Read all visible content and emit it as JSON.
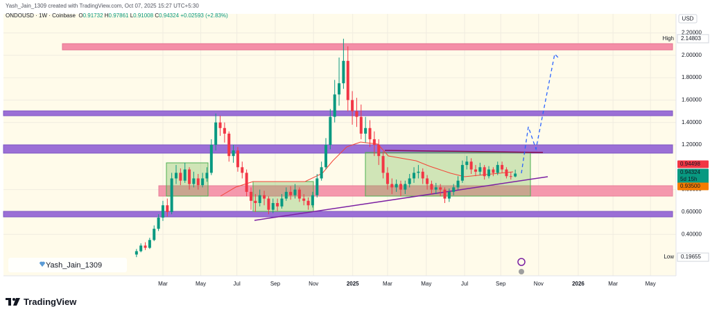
{
  "chart_data": {
    "type": "candlestick",
    "credit": "Yash_Jain_1309 created with TradingView.com, Oct 07, 2025 15:27 UTC+5:30",
    "symbol": "ONDOUSD · 1W · Coinbase",
    "ohlc_prefixes": [
      "O",
      "H",
      "L",
      "C"
    ],
    "change": "+0.02593 (+2.83%)",
    "currency": "USD",
    "watermark": "Yash_Jain_1309",
    "branding": "TradingView",
    "high_label": "High",
    "low_label": "Low",
    "countdown": "5d 15h",
    "price_tags": [
      {
        "value": 0.94498,
        "color": "#f23645"
      },
      {
        "value": 0.935,
        "label": "0.93500",
        "color": "#f57c00"
      }
    ],
    "up_color": "#089981",
    "down_color": "#f23645",
    "open": [
      0.22,
      0.25,
      0.3,
      0.28,
      0.35,
      0.45,
      0.55,
      0.66,
      0.6,
      0.9,
      0.95,
      0.88,
      0.98,
      0.85,
      0.9,
      0.84,
      0.9,
      0.95,
      1.2,
      1.4,
      1.35,
      1.3,
      1.1,
      1.15,
      1.0,
      0.95,
      0.78,
      0.7,
      0.68,
      0.75,
      0.72,
      0.62,
      0.68,
      0.65,
      0.72,
      0.78,
      0.75,
      0.8,
      0.72,
      0.7,
      0.66,
      0.75,
      0.9,
      1.0,
      1.2,
      1.45,
      1.65,
      1.75,
      1.95,
      1.6,
      1.5,
      1.45,
      1.3,
      1.35,
      1.25,
      1.2,
      1.1,
      0.95,
      0.85,
      0.82,
      0.85,
      0.8,
      0.85,
      0.9,
      0.95,
      0.96,
      0.9,
      0.85,
      0.8,
      0.82,
      0.8,
      0.72,
      0.78,
      0.82,
      0.88,
      1.02,
      1.05,
      0.98,
      0.96,
      1.0,
      0.92,
      0.98,
      0.95,
      1.02,
      0.98,
      0.92,
      0.91732
    ],
    "high": [
      0.27,
      0.32,
      0.33,
      0.37,
      0.48,
      0.58,
      0.7,
      0.72,
      0.95,
      1.02,
      0.99,
      1.04,
      1.0,
      0.96,
      0.94,
      0.95,
      1.0,
      1.25,
      1.48,
      1.46,
      1.4,
      1.32,
      1.2,
      1.18,
      1.05,
      0.98,
      0.82,
      0.76,
      0.8,
      0.79,
      0.74,
      0.72,
      0.72,
      0.76,
      0.82,
      0.83,
      0.85,
      0.82,
      0.76,
      0.73,
      0.78,
      0.94,
      1.05,
      1.26,
      1.52,
      1.78,
      1.98,
      2.14803,
      2.08,
      1.68,
      1.62,
      1.56,
      1.45,
      1.42,
      1.32,
      1.25,
      1.14,
      1.0,
      0.9,
      0.89,
      0.88,
      0.88,
      0.94,
      1.0,
      1.02,
      0.99,
      0.93,
      0.88,
      0.86,
      0.85,
      0.82,
      0.81,
      0.85,
      0.92,
      1.06,
      1.1,
      1.08,
      1.02,
      1.04,
      1.02,
      1.01,
      1.0,
      1.05,
      1.05,
      1.0,
      0.96,
      0.97861
    ],
    "low": [
      0.19655,
      0.24,
      0.26,
      0.27,
      0.34,
      0.43,
      0.52,
      0.56,
      0.58,
      0.85,
      0.84,
      0.86,
      0.8,
      0.82,
      0.8,
      0.82,
      0.87,
      0.93,
      1.15,
      1.28,
      1.22,
      1.05,
      1.04,
      0.96,
      0.9,
      0.74,
      0.62,
      0.6,
      0.65,
      0.66,
      0.58,
      0.59,
      0.61,
      0.63,
      0.7,
      0.71,
      0.72,
      0.69,
      0.66,
      0.62,
      0.64,
      0.73,
      0.88,
      0.98,
      1.16,
      1.4,
      1.55,
      1.7,
      1.5,
      1.38,
      1.36,
      1.25,
      1.22,
      1.18,
      1.1,
      1.02,
      0.9,
      0.8,
      0.76,
      0.78,
      0.74,
      0.76,
      0.82,
      0.86,
      0.9,
      0.85,
      0.8,
      0.76,
      0.76,
      0.74,
      0.68,
      0.69,
      0.75,
      0.8,
      0.86,
      0.98,
      0.94,
      0.92,
      0.93,
      0.89,
      0.9,
      0.92,
      0.93,
      0.95,
      0.9,
      0.89,
      0.91008
    ],
    "close": [
      0.25,
      0.3,
      0.28,
      0.35,
      0.45,
      0.55,
      0.66,
      0.6,
      0.9,
      0.95,
      0.88,
      0.98,
      0.85,
      0.9,
      0.84,
      0.9,
      0.95,
      1.2,
      1.4,
      1.35,
      1.3,
      1.1,
      1.15,
      1.0,
      0.95,
      0.78,
      0.7,
      0.68,
      0.75,
      0.72,
      0.62,
      0.68,
      0.65,
      0.72,
      0.78,
      0.75,
      0.8,
      0.72,
      0.7,
      0.66,
      0.75,
      0.9,
      1.0,
      1.2,
      1.45,
      1.65,
      1.75,
      1.95,
      1.6,
      1.5,
      1.45,
      1.3,
      1.35,
      1.25,
      1.2,
      1.1,
      0.95,
      0.85,
      0.82,
      0.85,
      0.8,
      0.85,
      0.9,
      0.95,
      0.96,
      0.9,
      0.85,
      0.8,
      0.82,
      0.8,
      0.72,
      0.78,
      0.82,
      0.88,
      1.02,
      1.05,
      0.98,
      0.96,
      1.0,
      0.92,
      0.98,
      0.95,
      1.02,
      0.98,
      0.92,
      0.91732,
      0.94324
    ],
    "xlim": [
      -30.2,
      122.5
    ],
    "xticks": [
      {
        "value": 6.0,
        "label": "Mar"
      },
      {
        "value": 14.6,
        "label": "May"
      },
      {
        "value": 22.8,
        "label": "Jul"
      },
      {
        "value": 31.5,
        "label": "Sep"
      },
      {
        "value": 40.2,
        "label": "Nov"
      },
      {
        "value": 49.1,
        "label": "2025"
      },
      {
        "value": 57.0,
        "label": "Mar"
      },
      {
        "value": 65.8,
        "label": "May"
      },
      {
        "value": 74.5,
        "label": "Jul"
      },
      {
        "value": 82.7,
        "label": "Sep"
      },
      {
        "value": 91.3,
        "label": "Nov"
      },
      {
        "value": 100.3,
        "label": "2026"
      },
      {
        "value": 108.2,
        "label": "Mar"
      },
      {
        "value": 116.7,
        "label": "May"
      }
    ],
    "ylim": [
      0.03,
      2.37
    ],
    "yticks": [
      {
        "value": 0.4,
        "label": "0.40000"
      },
      {
        "value": 0.6,
        "label": "0.60000"
      },
      {
        "value": 0.8,
        "label": "0.80000"
      },
      {
        "value": 1.2,
        "label": "1.20000"
      },
      {
        "value": 1.4,
        "label": "1.40000"
      },
      {
        "value": 1.6,
        "label": "1.60000"
      },
      {
        "value": 1.8,
        "label": "1.80000"
      },
      {
        "value": 2.0,
        "label": "2.00000"
      },
      {
        "value": 2.2,
        "label": "2.20000"
      }
    ],
    "grid": true
  }
}
